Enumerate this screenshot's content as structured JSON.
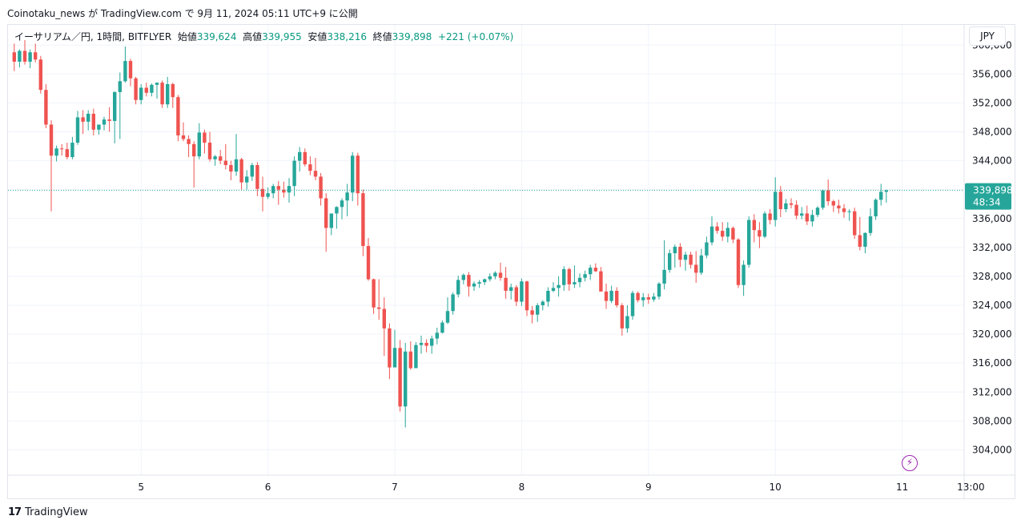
{
  "header": {
    "publish_line": "Coinotaku_news が TradingView.com で 9月 11, 2024 05:11 UTC+9 に公開"
  },
  "legend": {
    "symbol": "イーサリアム／円, 1時間, BITFLYER",
    "open_label": "始値",
    "open_value": "339,624",
    "high_label": "高値",
    "high_value": "339,955",
    "low_label": "安値",
    "low_value": "338,216",
    "close_label": "終値",
    "close_value": "339,898",
    "change": "+221 (+0.07%)"
  },
  "currency_button": "JPY",
  "price_tag": {
    "price": "339,898",
    "countdown": "48:34"
  },
  "footer": {
    "brand": "TradingView"
  },
  "colors": {
    "up": "#26a69a",
    "down": "#ef5350",
    "grid": "#f0f3fa",
    "last_price_line": "#26a69a",
    "accent": "#9c27b0"
  },
  "chart_data": {
    "type": "candlestick",
    "title": "",
    "symbol": "イーサリアム／円, 1時間, BITFLYER",
    "currency": "JPY",
    "ylim": [
      300500,
      362800
    ],
    "y_ticks": [
      304000,
      308000,
      312000,
      316000,
      320000,
      324000,
      328000,
      332000,
      336000,
      340000,
      344000,
      348000,
      352000,
      356000,
      360000
    ],
    "y_tick_labels": [
      "304,000",
      "308,000",
      "312,000",
      "316,000",
      "320,000",
      "324,000",
      "328,000",
      "332,000",
      "336,000",
      "340,000",
      "344,000",
      "348,000",
      "352,000",
      "356,000",
      "360,000"
    ],
    "x_ticks": [
      {
        "label": "5",
        "hour": 24
      },
      {
        "label": "6",
        "hour": 48
      },
      {
        "label": "7",
        "hour": 72
      },
      {
        "label": "8",
        "hour": 96
      },
      {
        "label": "9",
        "hour": 120
      },
      {
        "label": "10",
        "hour": 144
      },
      {
        "label": "11",
        "hour": 168
      },
      {
        "label": "13:00",
        "hour": 181
      }
    ],
    "last_price": 339898,
    "candles": [
      [
        359000,
        360200,
        356400,
        357700
      ],
      [
        357700,
        359400,
        356900,
        359200
      ],
      [
        359200,
        360700,
        357300,
        357700
      ],
      [
        357700,
        359400,
        356800,
        359000
      ],
      [
        359000,
        360200,
        357600,
        358000
      ],
      [
        358000,
        358500,
        353300,
        353800
      ],
      [
        353800,
        354600,
        348500,
        349000
      ],
      [
        349000,
        349600,
        337000,
        344700
      ],
      [
        344700,
        346100,
        343900,
        345700
      ],
      [
        345700,
        346300,
        344700,
        345600
      ],
      [
        345600,
        346500,
        344200,
        344500
      ],
      [
        344500,
        347300,
        344200,
        346500
      ],
      [
        346500,
        350900,
        346200,
        350000
      ],
      [
        350000,
        351000,
        347700,
        349400
      ],
      [
        349400,
        351000,
        348200,
        350500
      ],
      [
        350500,
        351200,
        347500,
        348300
      ],
      [
        348300,
        348800,
        347600,
        349000
      ],
      [
        349000,
        350100,
        348200,
        349700
      ],
      [
        349700,
        351400,
        348000,
        349500
      ],
      [
        349500,
        353600,
        346400,
        353500
      ],
      [
        353500,
        356200,
        347000,
        355000
      ],
      [
        355000,
        359800,
        354800,
        357800
      ],
      [
        357800,
        358100,
        354300,
        355400
      ],
      [
        355400,
        355600,
        351800,
        352400
      ],
      [
        352400,
        354600,
        351800,
        354100
      ],
      [
        354100,
        354800,
        352900,
        353400
      ],
      [
        353400,
        354700,
        352900,
        354500
      ],
      [
        354500,
        354800,
        352600,
        354800
      ],
      [
        354800,
        355100,
        351300,
        351800
      ],
      [
        351800,
        355600,
        351300,
        354600
      ],
      [
        354600,
        354800,
        351300,
        352800
      ],
      [
        352800,
        353100,
        346700,
        347500
      ],
      [
        347500,
        349300,
        346700,
        347000
      ],
      [
        347000,
        347500,
        344500,
        346300
      ],
      [
        346300,
        346700,
        340300,
        344600
      ],
      [
        344600,
        349200,
        344200,
        347900
      ],
      [
        347900,
        348300,
        345000,
        346500
      ],
      [
        346500,
        348000,
        343900,
        344200
      ],
      [
        344200,
        344800,
        343300,
        344600
      ],
      [
        344600,
        345500,
        343500,
        344000
      ],
      [
        344000,
        346300,
        342800,
        343400
      ],
      [
        343400,
        344000,
        341300,
        342500
      ],
      [
        342500,
        347700,
        341900,
        344200
      ],
      [
        344200,
        344400,
        340000,
        341000
      ],
      [
        341000,
        342700,
        340000,
        341800
      ],
      [
        341800,
        343700,
        341200,
        343400
      ],
      [
        343400,
        343800,
        339100,
        340100
      ],
      [
        340100,
        341800,
        337000,
        339000
      ],
      [
        339000,
        340300,
        338700,
        339500
      ],
      [
        339500,
        340800,
        338800,
        340500
      ],
      [
        340500,
        341200,
        337900,
        340000
      ],
      [
        340000,
        341100,
        338900,
        339600
      ],
      [
        339600,
        341600,
        338200,
        340500
      ],
      [
        340500,
        344600,
        339100,
        344000
      ],
      [
        344000,
        345900,
        342500,
        345200
      ],
      [
        345200,
        345700,
        343200,
        343500
      ],
      [
        343500,
        344600,
        342000,
        342600
      ],
      [
        342600,
        344400,
        341300,
        341800
      ],
      [
        341800,
        342300,
        337800,
        338800
      ],
      [
        338800,
        339500,
        331400,
        334700
      ],
      [
        334700,
        336300,
        333700,
        336700
      ],
      [
        336700,
        337700,
        334600,
        337600
      ],
      [
        337600,
        338800,
        335900,
        338500
      ],
      [
        338500,
        340800,
        336300,
        339600
      ],
      [
        339600,
        345200,
        338400,
        344700
      ],
      [
        344700,
        345100,
        337800,
        339500
      ],
      [
        339500,
        340000,
        330800,
        332200
      ],
      [
        332200,
        333300,
        327400,
        327600
      ],
      [
        327600,
        327700,
        322800,
        323700
      ],
      [
        323700,
        327600,
        322000,
        323500
      ],
      [
        323500,
        325100,
        317000,
        320800
      ],
      [
        320800,
        321500,
        313800,
        315400
      ],
      [
        315400,
        320600,
        315500,
        318100
      ],
      [
        318100,
        319200,
        309300,
        310000
      ],
      [
        310000,
        318800,
        307100,
        317600
      ],
      [
        317600,
        319000,
        315100,
        315300
      ],
      [
        315300,
        318900,
        315400,
        318500
      ],
      [
        318500,
        319800,
        317300,
        318800
      ],
      [
        318800,
        319300,
        317500,
        318400
      ],
      [
        318400,
        319800,
        317300,
        319400
      ],
      [
        319400,
        320900,
        318600,
        320200
      ],
      [
        320200,
        321900,
        320100,
        321600
      ],
      [
        321600,
        325100,
        321400,
        323200
      ],
      [
        323200,
        325800,
        322700,
        325500
      ],
      [
        325500,
        328100,
        325100,
        327500
      ],
      [
        327500,
        328400,
        326900,
        328200
      ],
      [
        328200,
        328600,
        325200,
        326600
      ],
      [
        326600,
        327300,
        326000,
        327000
      ],
      [
        327000,
        327500,
        326400,
        327200
      ],
      [
        327200,
        327700,
        326800,
        327600
      ],
      [
        327600,
        328400,
        327300,
        328000
      ],
      [
        328000,
        328700,
        327600,
        328500
      ],
      [
        328500,
        329900,
        327400,
        327800
      ],
      [
        327800,
        329300,
        324900,
        326000
      ],
      [
        326000,
        327000,
        324800,
        326500
      ],
      [
        326500,
        326800,
        323900,
        324500
      ],
      [
        324500,
        327700,
        323900,
        327300
      ],
      [
        327300,
        327400,
        322500,
        323300
      ],
      [
        323300,
        323900,
        321500,
        322700
      ],
      [
        322700,
        324300,
        321700,
        324000
      ],
      [
        324000,
        324700,
        323300,
        324500
      ],
      [
        324500,
        326500,
        323800,
        326000
      ],
      [
        326000,
        327200,
        325800,
        326400
      ],
      [
        326400,
        328000,
        325200,
        326800
      ],
      [
        326800,
        329400,
        326000,
        329000
      ],
      [
        329000,
        329200,
        326000,
        326900
      ],
      [
        326900,
        329500,
        326400,
        327200
      ],
      [
        327200,
        328400,
        326500,
        327800
      ],
      [
        327800,
        328800,
        327300,
        328300
      ],
      [
        328300,
        329600,
        327500,
        329200
      ],
      [
        329200,
        329800,
        328600,
        328700
      ],
      [
        328700,
        329300,
        326300,
        325900
      ],
      [
        325900,
        327000,
        323500,
        324600
      ],
      [
        324600,
        326700,
        324300,
        326000
      ],
      [
        326000,
        326500,
        323700,
        324000
      ],
      [
        324000,
        324300,
        319800,
        320800
      ],
      [
        320800,
        324000,
        320200,
        322500
      ],
      [
        322500,
        326000,
        322000,
        325700
      ],
      [
        325700,
        325900,
        324400,
        324700
      ],
      [
        324700,
        325700,
        323800,
        325100
      ],
      [
        325100,
        325600,
        324200,
        324800
      ],
      [
        324800,
        325700,
        324500,
        325200
      ],
      [
        325200,
        327200,
        324800,
        327000
      ],
      [
        327000,
        333000,
        326200,
        328900
      ],
      [
        328900,
        331700,
        328500,
        331200
      ],
      [
        331200,
        332400,
        329200,
        332100
      ],
      [
        332100,
        332600,
        329300,
        330300
      ],
      [
        330300,
        331400,
        328800,
        331000
      ],
      [
        331000,
        331400,
        329100,
        329600
      ],
      [
        329600,
        331500,
        327100,
        328500
      ],
      [
        328500,
        331800,
        328200,
        330900
      ],
      [
        330900,
        333500,
        330500,
        332700
      ],
      [
        332700,
        336300,
        332300,
        334900
      ],
      [
        334900,
        335500,
        333900,
        334300
      ],
      [
        334300,
        335500,
        332900,
        333500
      ],
      [
        333500,
        335500,
        332700,
        334700
      ],
      [
        334700,
        334900,
        332600,
        333100
      ],
      [
        333100,
        333300,
        326400,
        326800
      ],
      [
        326800,
        330200,
        325300,
        329600
      ],
      [
        329600,
        336300,
        329200,
        335800
      ],
      [
        335800,
        336600,
        332700,
        334400
      ],
      [
        334400,
        335500,
        331900,
        333500
      ],
      [
        333500,
        337000,
        333300,
        336700
      ],
      [
        336700,
        337300,
        335200,
        335800
      ],
      [
        335800,
        341700,
        334900,
        339700
      ],
      [
        339700,
        340500,
        336200,
        337300
      ],
      [
        337300,
        338700,
        336900,
        338100
      ],
      [
        338100,
        338800,
        337400,
        337900
      ],
      [
        337900,
        338500,
        335900,
        336400
      ],
      [
        336400,
        337600,
        335900,
        336700
      ],
      [
        336700,
        337800,
        335100,
        335600
      ],
      [
        335600,
        337200,
        334900,
        336500
      ],
      [
        336500,
        337700,
        336200,
        337500
      ],
      [
        337500,
        340000,
        337200,
        339900
      ],
      [
        339900,
        341400,
        337800,
        338400
      ],
      [
        338400,
        338600,
        336900,
        337800
      ],
      [
        337800,
        338600,
        336700,
        337400
      ],
      [
        337400,
        338000,
        336100,
        336900
      ],
      [
        336900,
        337300,
        335700,
        337000
      ],
      [
        337000,
        337500,
        333200,
        333700
      ],
      [
        333700,
        336200,
        331600,
        332100
      ],
      [
        332100,
        334100,
        331200,
        334000
      ],
      [
        334000,
        337400,
        333600,
        336300
      ],
      [
        336300,
        338800,
        335800,
        338600
      ],
      [
        338600,
        340800,
        337800,
        339700
      ],
      [
        339700,
        340000,
        338200,
        339900
      ]
    ]
  }
}
